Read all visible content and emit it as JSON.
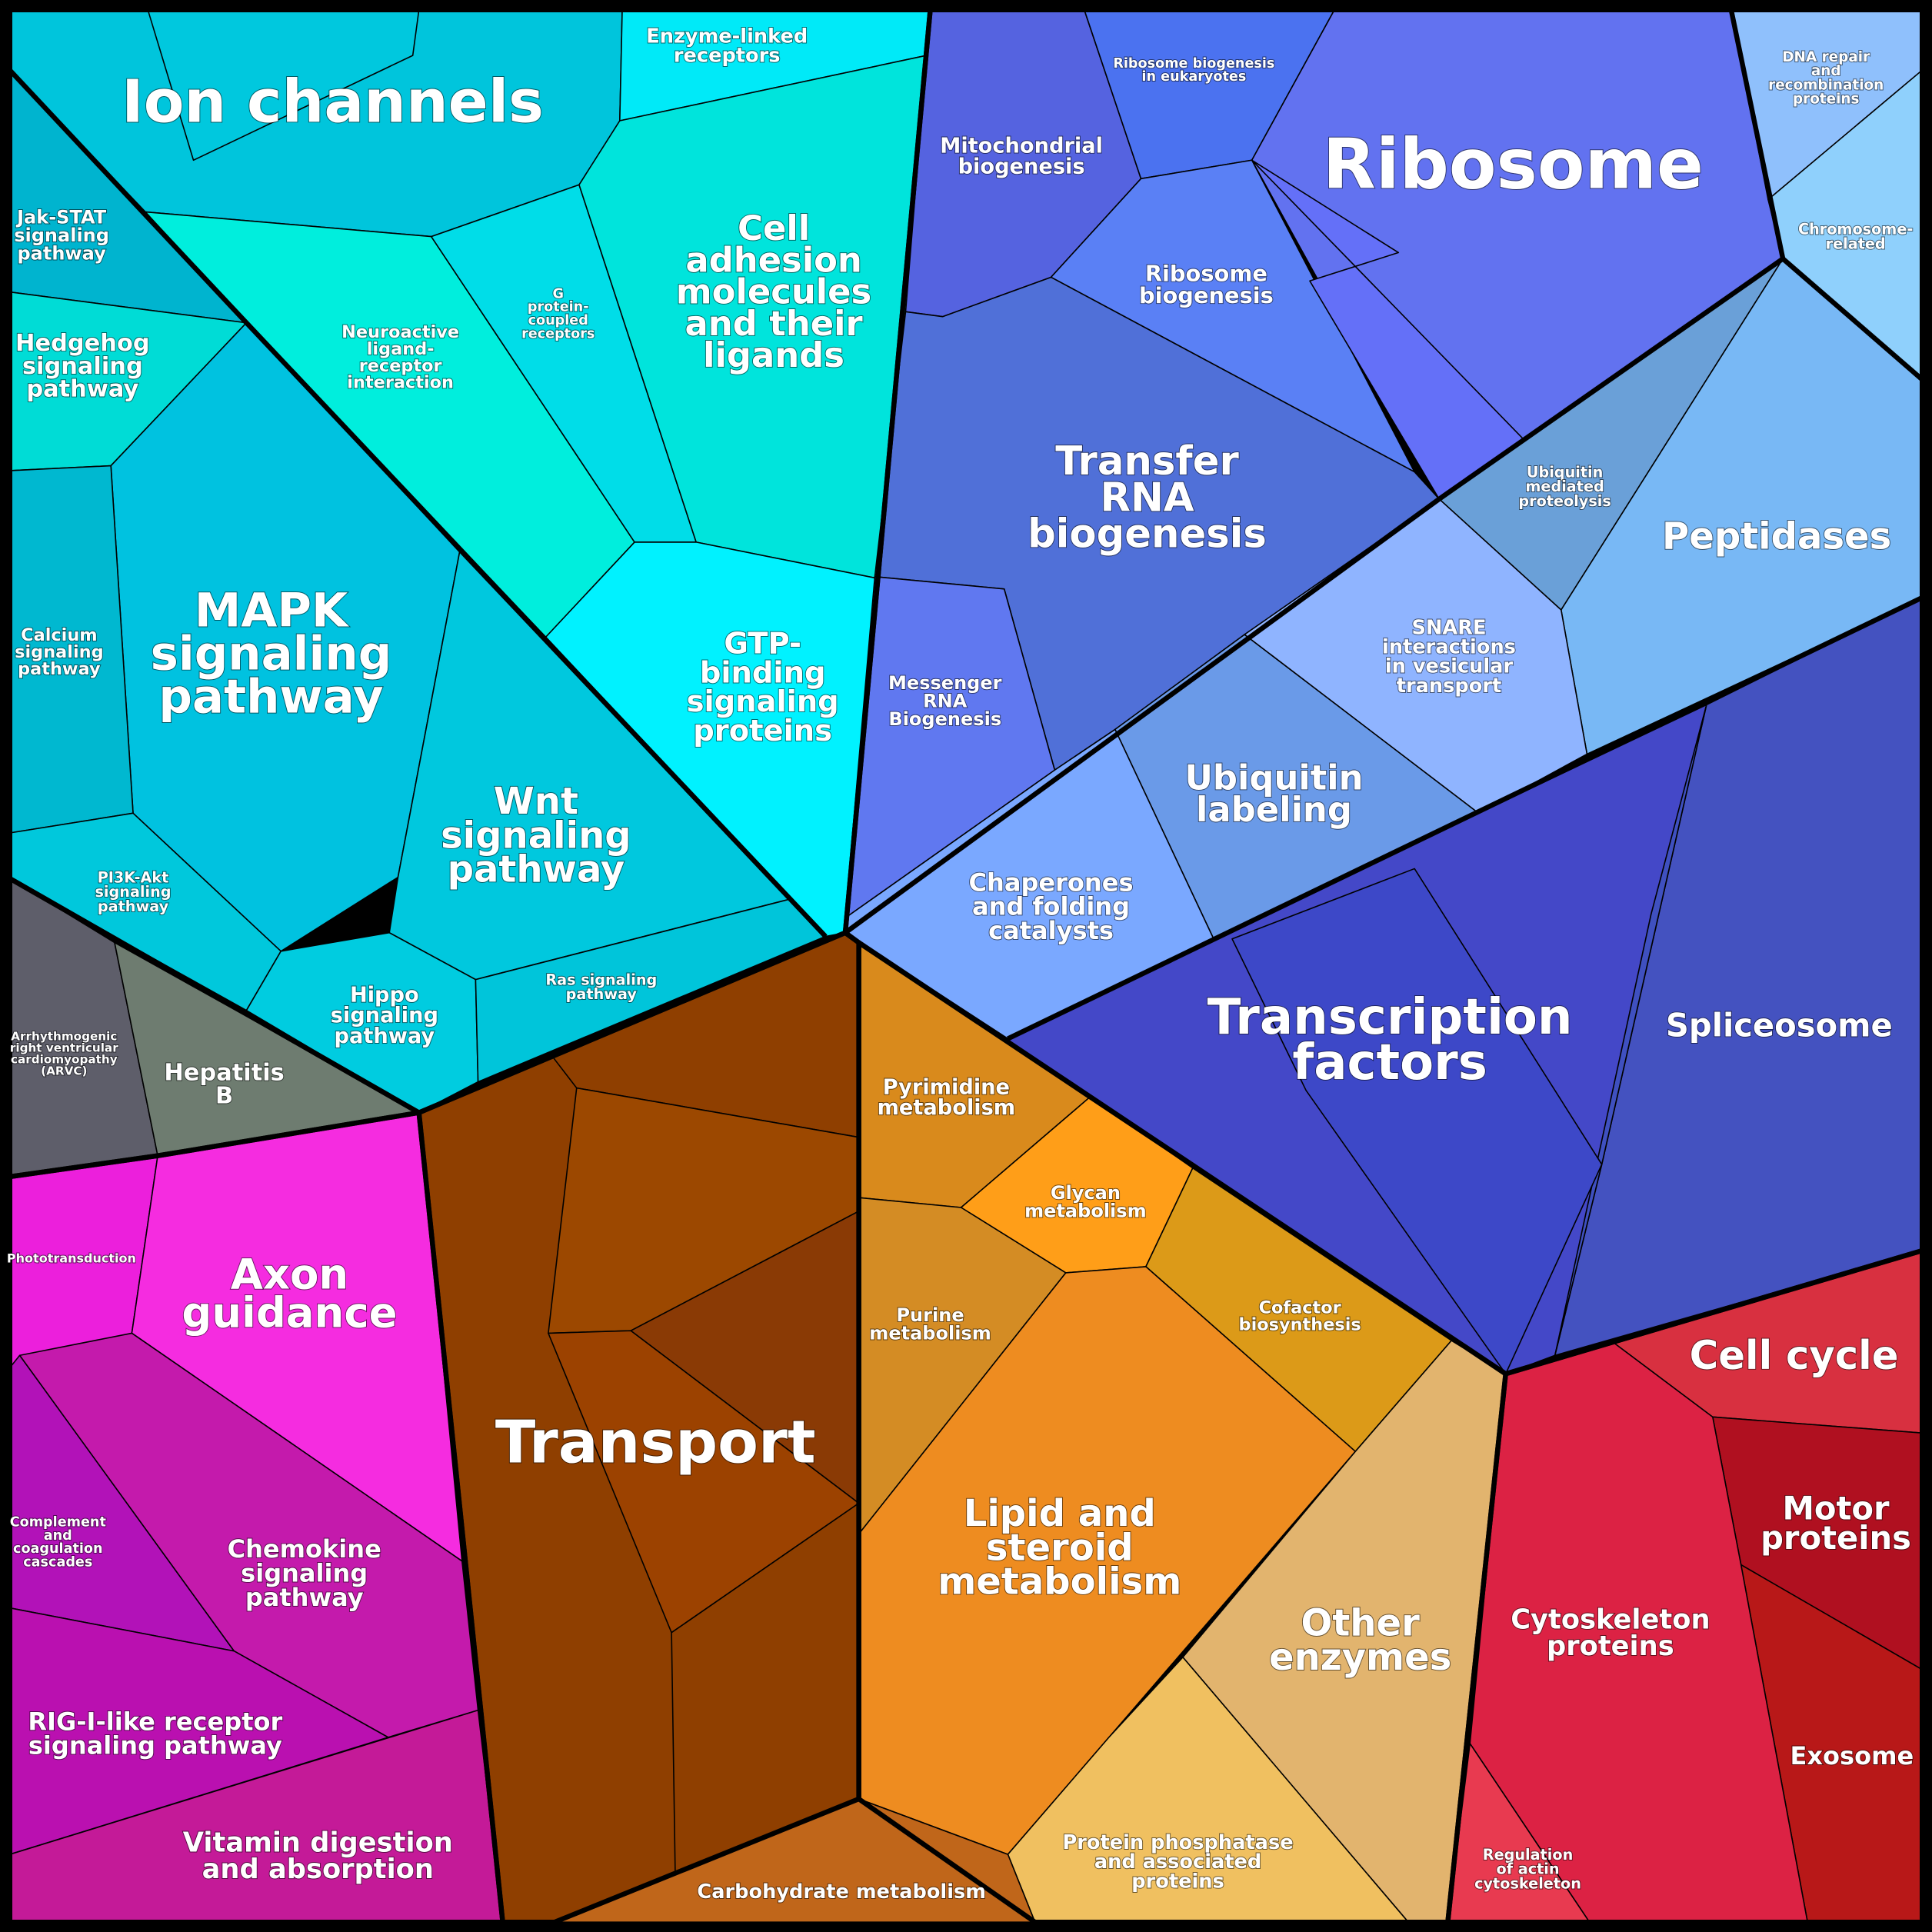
{
  "regions": [
    {
      "id": "ion",
      "lines": [
        "Ion channels"
      ],
      "color": "#00c5dc"
    },
    {
      "id": "enzyme",
      "lines": [
        "Enzyme-linked",
        "receptors"
      ],
      "color": "#00eaf8"
    },
    {
      "id": "jak",
      "lines": [
        "Jak-STAT",
        "signaling",
        "pathway"
      ],
      "color": "#00b4cf"
    },
    {
      "id": "hedgehog",
      "lines": [
        "Hedgehog",
        "signaling",
        "pathway"
      ],
      "color": "#00dcd6"
    },
    {
      "id": "neuro",
      "lines": [
        "Neuroactive",
        "ligand-",
        "receptor",
        "interaction"
      ],
      "color": "#00eedd"
    },
    {
      "id": "gpcr",
      "lines": [
        "G",
        "protein-",
        "coupled",
        "receptors"
      ],
      "color": "#00dde8"
    },
    {
      "id": "adhesion",
      "lines": [
        "Cell",
        "adhesion",
        "molecules",
        "and their",
        "ligands"
      ],
      "color": "#00e4dc"
    },
    {
      "id": "gtp",
      "lines": [
        "GTP-",
        "binding",
        "signaling",
        "proteins"
      ],
      "color": "#00f2ff"
    },
    {
      "id": "mapk",
      "lines": [
        "MAPK",
        "signaling",
        "pathway"
      ],
      "color": "#00c2e0"
    },
    {
      "id": "calcium",
      "lines": [
        "Calcium",
        "signaling",
        "pathway"
      ],
      "color": "#00b8d0"
    },
    {
      "id": "pi3k",
      "lines": [
        "PI3K-Akt",
        "signaling",
        "pathway"
      ],
      "color": "#00c8dc"
    },
    {
      "id": "wnt",
      "lines": [
        "Wnt",
        "signaling",
        "pathway"
      ],
      "color": "#00c8de"
    },
    {
      "id": "hippo",
      "lines": [
        "Hippo",
        "signaling",
        "pathway"
      ],
      "color": "#00cce0"
    },
    {
      "id": "ras",
      "lines": [
        "Ras signaling",
        "pathway"
      ],
      "color": "#00c5da"
    },
    {
      "id": "arvc",
      "lines": [
        "Arrhythmogenic",
        "right ventricular",
        "cardiomyopathy",
        "(ARVC)"
      ],
      "color": "#5e5e6a"
    },
    {
      "id": "hepb",
      "lines": [
        "Hepatitis",
        "B"
      ],
      "color": "#6e7c70"
    },
    {
      "id": "photo",
      "lines": [
        "Phototransduction"
      ],
      "color": "#ec1fdc"
    },
    {
      "id": "axon",
      "lines": [
        "Axon",
        "guidance"
      ],
      "color": "#f52ce0"
    },
    {
      "id": "complement",
      "lines": [
        "Complement",
        "and",
        "coagulation",
        "cascades"
      ],
      "color": "#b212b8"
    },
    {
      "id": "chemokine",
      "lines": [
        "Chemokine",
        "signaling",
        "pathway"
      ],
      "color": "#c41aac"
    },
    {
      "id": "rig",
      "lines": [
        "RIG-I-like receptor",
        "signaling pathway"
      ],
      "color": "#ba10b0"
    },
    {
      "id": "vitamin",
      "lines": [
        "Vitamin digestion",
        "and absorption"
      ],
      "color": "#c41a98"
    },
    {
      "id": "transport",
      "lines": [
        "Transport"
      ],
      "color": "#8f3f00"
    },
    {
      "id": "pyrimidine",
      "lines": [
        "Pyrimidine",
        "metabolism"
      ],
      "color": "#d98a1c"
    },
    {
      "id": "glycan",
      "lines": [
        "Glycan",
        "metabolism"
      ],
      "color": "#ff9e18"
    },
    {
      "id": "cofactor",
      "lines": [
        "Cofactor",
        "biosynthesis"
      ],
      "color": "#dc9a18"
    },
    {
      "id": "purine",
      "lines": [
        "Purine",
        "metabolism"
      ],
      "color": "#d48c24"
    },
    {
      "id": "lipid",
      "lines": [
        "Lipid and",
        "steroid",
        "metabolism"
      ],
      "color": "#ee8c20"
    },
    {
      "id": "other",
      "lines": [
        "Other",
        "enzymes"
      ],
      "color": "#e2b46e"
    },
    {
      "id": "phosphatase",
      "lines": [
        "Protein phosphatase",
        "and associated",
        "proteins"
      ],
      "color": "#f0c060"
    },
    {
      "id": "carbo",
      "lines": [
        "Carbohydrate metabolism"
      ],
      "color": "#c0661a"
    },
    {
      "id": "mito",
      "lines": [
        "Mitochondrial",
        "biogenesis"
      ],
      "color": "#5563e0"
    },
    {
      "id": "rbe",
      "lines": [
        "Ribosome biogenesis",
        "in eukaryotes"
      ],
      "color": "#4b72f0"
    },
    {
      "id": "ribosome",
      "lines": [
        "Ribosome"
      ],
      "color": "#6272f0"
    },
    {
      "id": "dna",
      "lines": [
        "DNA repair",
        "and",
        "recombination",
        "proteins"
      ],
      "color": "#8fc0fc"
    },
    {
      "id": "chromo",
      "lines": [
        "Chromosome-",
        "related"
      ],
      "color": "#8fd0fc"
    },
    {
      "id": "rb",
      "lines": [
        "Ribosome",
        "biogenesis"
      ],
      "color": "#5a80f5"
    },
    {
      "id": "trna",
      "lines": [
        "Transfer",
        "RNA",
        "biogenesis"
      ],
      "color": "#5070d8"
    },
    {
      "id": "mrna",
      "lines": [
        "Messenger",
        "RNA",
        "Biogenesis"
      ],
      "color": "#6078f0"
    },
    {
      "id": "ubmed",
      "lines": [
        "Ubiquitin",
        "mediated",
        "proteolysis"
      ],
      "color": "#6aa0d8"
    },
    {
      "id": "pept",
      "lines": [
        "Peptidases"
      ],
      "color": "#78b8f5"
    },
    {
      "id": "snare",
      "lines": [
        "SNARE",
        "interactions",
        "in vesicular",
        "transport"
      ],
      "color": "#8fb4ff"
    },
    {
      "id": "ublab",
      "lines": [
        "Ubiquitin",
        "labeling"
      ],
      "color": "#6a9ae8"
    },
    {
      "id": "chap",
      "lines": [
        "Chaperones",
        "and folding",
        "catalysts"
      ],
      "color": "#7aa8ff"
    },
    {
      "id": "tf",
      "lines": [
        "Transcription",
        "factors"
      ],
      "color": "#4448c8"
    },
    {
      "id": "splice",
      "lines": [
        "Spliceosome"
      ],
      "color": "#4452c0"
    },
    {
      "id": "cellcycle",
      "lines": [
        "Cell cycle"
      ],
      "color": "#d83040"
    },
    {
      "id": "motor",
      "lines": [
        "Motor",
        "proteins"
      ],
      "color": "#b01020"
    },
    {
      "id": "exosome",
      "lines": [
        "Exosome"
      ],
      "color": "#b81818"
    },
    {
      "id": "cyto",
      "lines": [
        "Cytoskeleton",
        "proteins"
      ],
      "color": "#dc2244"
    },
    {
      "id": "actin",
      "lines": [
        "Regulation",
        "of actin",
        "cytoskeleton"
      ],
      "color": "#e83a50"
    }
  ]
}
